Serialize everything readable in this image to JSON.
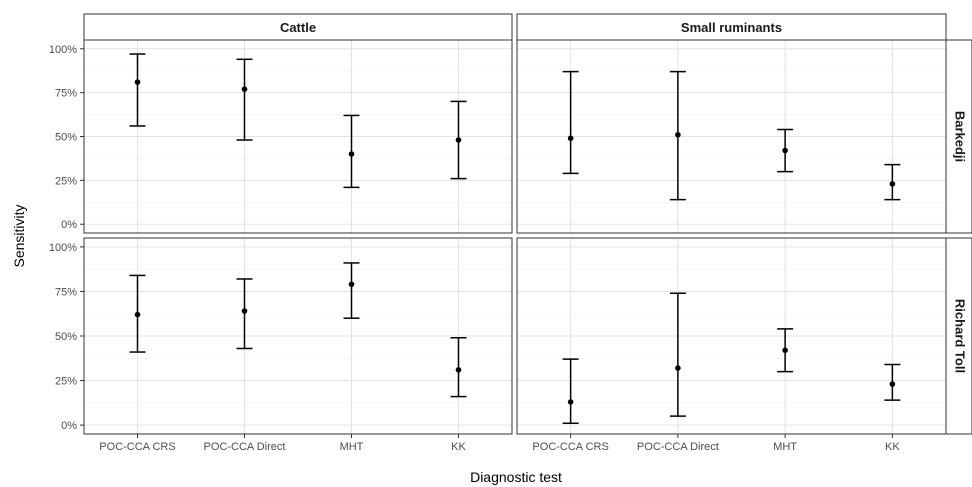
{
  "chart_data": {
    "type": "errorbar",
    "ylabel": "Sensitivity",
    "xlabel": "Diagnostic test",
    "ylim": [
      0,
      100
    ],
    "yticks": [
      "0%",
      "25%",
      "50%",
      "75%",
      "100%"
    ],
    "ytick_values": [
      0,
      25,
      50,
      75,
      100
    ],
    "categories": [
      "POC-CCA CRS",
      "POC-CCA Direct",
      "MHT",
      "KK"
    ],
    "facet_columns": [
      "Cattle",
      "Small ruminants"
    ],
    "facet_rows": [
      "Barkedji",
      "Richard Toll"
    ],
    "grid": true,
    "panels": [
      {
        "row": "Barkedji",
        "column": "Cattle",
        "points": [
          {
            "category": "POC-CCA CRS",
            "estimate": 81,
            "lower": 56,
            "upper": 97
          },
          {
            "category": "POC-CCA Direct",
            "estimate": 77,
            "lower": 48,
            "upper": 94
          },
          {
            "category": "MHT",
            "estimate": 40,
            "lower": 21,
            "upper": 62
          },
          {
            "category": "KK",
            "estimate": 48,
            "lower": 26,
            "upper": 70
          }
        ]
      },
      {
        "row": "Barkedji",
        "column": "Small ruminants",
        "points": [
          {
            "category": "POC-CCA CRS",
            "estimate": 49,
            "lower": 29,
            "upper": 87
          },
          {
            "category": "POC-CCA Direct",
            "estimate": 51,
            "lower": 14,
            "upper": 87
          },
          {
            "category": "MHT",
            "estimate": 42,
            "lower": 30,
            "upper": 54
          },
          {
            "category": "KK",
            "estimate": 23,
            "lower": 14,
            "upper": 34
          }
        ]
      },
      {
        "row": "Richard Toll",
        "column": "Cattle",
        "points": [
          {
            "category": "POC-CCA CRS",
            "estimate": 62,
            "lower": 41,
            "upper": 84
          },
          {
            "category": "POC-CCA Direct",
            "estimate": 64,
            "lower": 43,
            "upper": 82
          },
          {
            "category": "MHT",
            "estimate": 79,
            "lower": 60,
            "upper": 91
          },
          {
            "category": "KK",
            "estimate": 31,
            "lower": 16,
            "upper": 49
          }
        ]
      },
      {
        "row": "Richard Toll",
        "column": "Small ruminants",
        "points": [
          {
            "category": "POC-CCA CRS",
            "estimate": 13,
            "lower": 1,
            "upper": 37
          },
          {
            "category": "POC-CCA Direct",
            "estimate": 32,
            "lower": 5,
            "upper": 74
          },
          {
            "category": "MHT",
            "estimate": 42,
            "lower": 30,
            "upper": 54
          },
          {
            "category": "KK",
            "estimate": 23,
            "lower": 14,
            "upper": 34
          }
        ]
      }
    ]
  }
}
